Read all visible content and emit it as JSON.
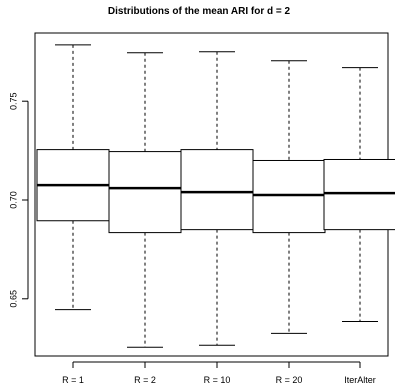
{
  "chart_data": {
    "type": "box",
    "title": "Distributions of the mean ARI for d = 2",
    "xlabel": "",
    "ylabel": "",
    "categories": [
      "R = 1",
      "R = 2",
      "R = 10",
      "R = 20",
      "IterAlter"
    ],
    "ylim": [
      0.62,
      0.785
    ],
    "yticks": [
      0.65,
      0.7,
      0.75
    ],
    "ytick_labels": [
      "0.65",
      "0.70",
      "0.75"
    ],
    "boxes": [
      {
        "label": "R = 1",
        "whisker_low": 0.6445,
        "q1": 0.6895,
        "median": 0.7075,
        "q3": 0.7255,
        "whisker_high": 0.7785
      },
      {
        "label": "R = 2",
        "whisker_low": 0.6255,
        "q1": 0.6835,
        "median": 0.706,
        "q3": 0.7245,
        "whisker_high": 0.7745
      },
      {
        "label": "R = 10",
        "whisker_low": 0.6265,
        "q1": 0.685,
        "median": 0.704,
        "q3": 0.7255,
        "whisker_high": 0.775
      },
      {
        "label": "R = 20",
        "whisker_low": 0.6325,
        "q1": 0.6835,
        "median": 0.7025,
        "q3": 0.72,
        "whisker_high": 0.7705
      },
      {
        "label": "IterAlter",
        "whisker_low": 0.6385,
        "q1": 0.685,
        "median": 0.7035,
        "q3": 0.7205,
        "whisker_high": 0.767
      }
    ],
    "grid": false,
    "legend": "none"
  }
}
